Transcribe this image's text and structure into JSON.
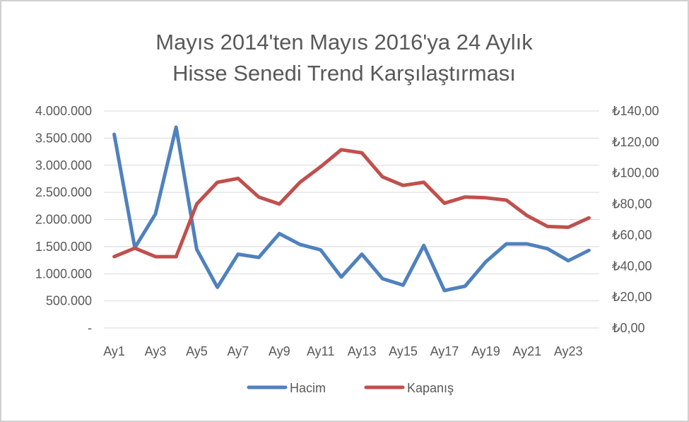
{
  "chart_data": {
    "type": "line",
    "title_lines": [
      "Mayıs 2014'ten Mayıs 2016'ya 24 Aylık",
      "Hisse Senedi Trend Karşılaştırması"
    ],
    "x": [
      "Ay1",
      "Ay2",
      "Ay3",
      "Ay4",
      "Ay5",
      "Ay6",
      "Ay7",
      "Ay8",
      "Ay9",
      "Ay10",
      "Ay11",
      "Ay12",
      "Ay13",
      "Ay14",
      "Ay15",
      "Ay16",
      "Ay17",
      "Ay18",
      "Ay19",
      "Ay20",
      "Ay21",
      "Ay22",
      "Ay23",
      "Ay24"
    ],
    "x_tick_labels": [
      "Ay1",
      "Ay3",
      "Ay5",
      "Ay7",
      "Ay9",
      "Ay11",
      "Ay13",
      "Ay15",
      "Ay17",
      "Ay19",
      "Ay21",
      "Ay23"
    ],
    "y_left": {
      "range": [
        0,
        4000000
      ],
      "tick_labels": [
        "-",
        "500.000",
        "1.000.000",
        "1.500.000",
        "2.000.000",
        "2.500.000",
        "3.000.000",
        "3.500.000",
        "4.000.000"
      ],
      "tick_values": [
        0,
        500000,
        1000000,
        1500000,
        2000000,
        2500000,
        3000000,
        3500000,
        4000000
      ]
    },
    "y_right": {
      "range": [
        0,
        140
      ],
      "tick_labels": [
        "₺0,00",
        "₺20,00",
        "₺40,00",
        "₺60,00",
        "₺80,00",
        "₺100,00",
        "₺120,00",
        "₺140,00"
      ],
      "tick_values": [
        0,
        20,
        40,
        60,
        80,
        100,
        120,
        140
      ]
    },
    "series": [
      {
        "name": "Hacim",
        "axis": "left",
        "color": "#4f81bd",
        "values": [
          3570000,
          1480000,
          2100000,
          3700000,
          1450000,
          750000,
          1360000,
          1300000,
          1740000,
          1540000,
          1440000,
          940000,
          1360000,
          910000,
          790000,
          1520000,
          690000,
          770000,
          1220000,
          1550000,
          1550000,
          1460000,
          1240000,
          1430000
        ]
      },
      {
        "name": "Kapanış",
        "axis": "right",
        "color": "#c0504d",
        "values": [
          46,
          51.5,
          46,
          46,
          80,
          94,
          96.5,
          84.5,
          80,
          94,
          104,
          115,
          113,
          97.5,
          92,
          94,
          80.5,
          84.5,
          84,
          82.5,
          72.5,
          65.5,
          65,
          71
        ]
      }
    ],
    "legend_position": "bottom",
    "grid": true
  }
}
